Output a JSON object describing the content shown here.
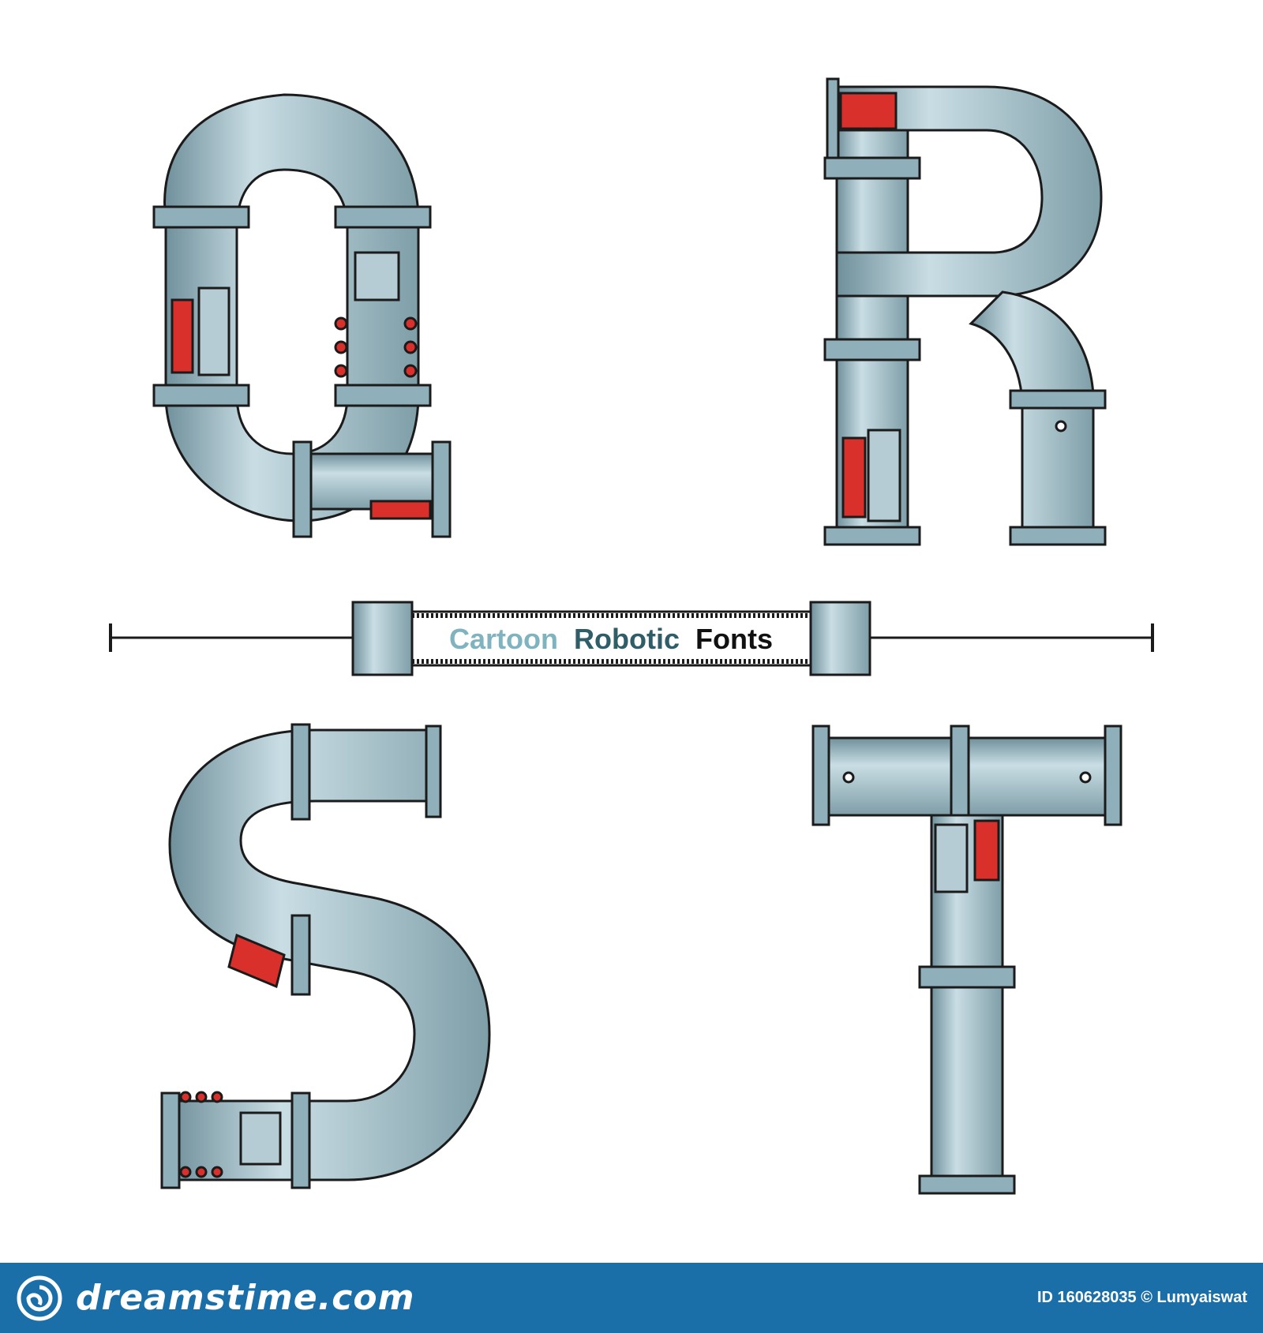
{
  "caption": {
    "word1": "Cartoon",
    "word2": "Robotic",
    "word3": "Fonts"
  },
  "letters": [
    "Q",
    "R",
    "S",
    "T"
  ],
  "footer": {
    "brand": "dreamstime.com",
    "id_label": "ID",
    "id_value": "160628035",
    "author": "© Lumyaiswat"
  },
  "colors": {
    "pipe": "#a9c6d1",
    "pipe_dark": "#5d7f8c",
    "accent_red": "#d9302b",
    "accent_yellow": "#e8d23a",
    "caption_word1": "#7fb3bf",
    "caption_word2": "#2f5e68",
    "caption_word3": "#111111",
    "footer_bg": "#1a6fa8"
  }
}
